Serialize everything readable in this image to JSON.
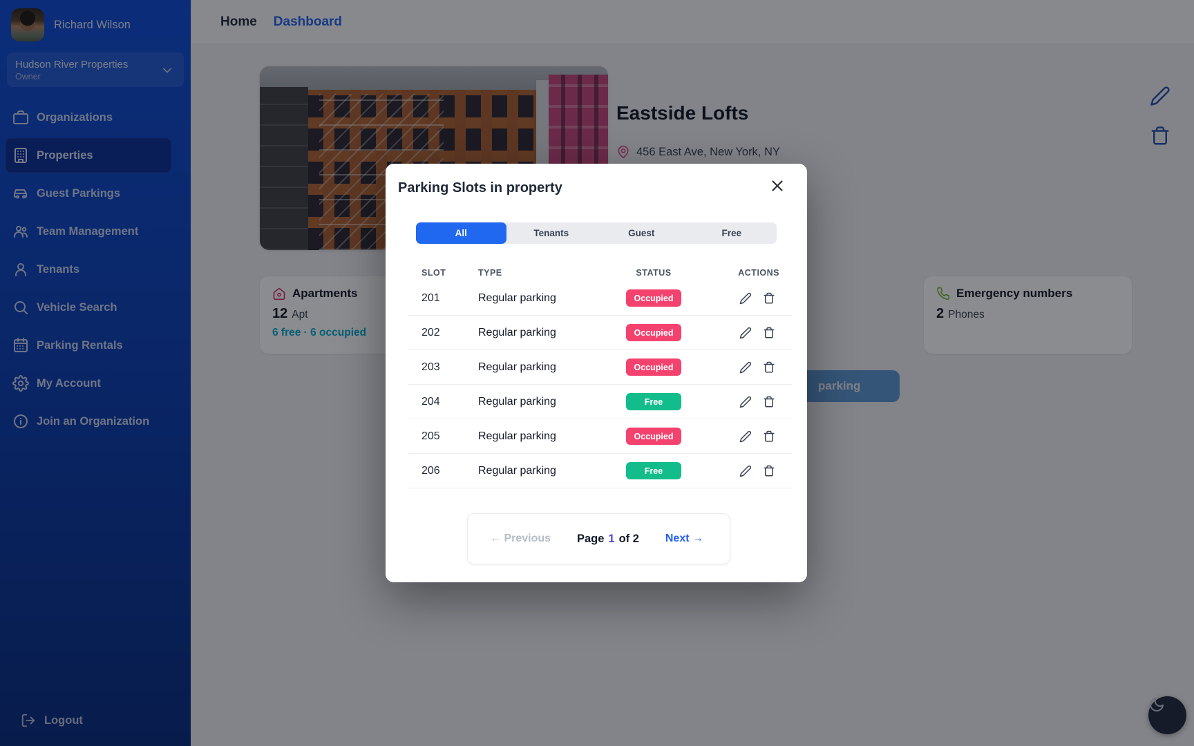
{
  "sidebar": {
    "user": {
      "name": "Richard Wilson"
    },
    "organization": {
      "name": "Hudson River Properties",
      "role": "Owner"
    },
    "nav": [
      {
        "label": "Organizations",
        "icon": "briefcase",
        "active": false
      },
      {
        "label": "Properties",
        "icon": "building",
        "active": true
      },
      {
        "label": "Guest Parkings",
        "icon": "car",
        "active": false
      },
      {
        "label": "Team Management",
        "icon": "users",
        "active": false
      },
      {
        "label": "Tenants",
        "icon": "user",
        "active": false
      },
      {
        "label": "Vehicle Search",
        "icon": "search",
        "active": false
      },
      {
        "label": "Parking Rentals",
        "icon": "calendar",
        "active": false
      },
      {
        "label": "My Account",
        "icon": "gear",
        "active": false
      },
      {
        "label": "Join an Organization",
        "icon": "info",
        "active": false
      }
    ],
    "logout_label": "Logout"
  },
  "breadcrumb": {
    "home": "Home",
    "current": "Dashboard"
  },
  "property": {
    "name": "Eastside Lofts",
    "address": "456 East Ave, New York, NY",
    "cards": [
      {
        "icon": "house",
        "icon_color": "#d6336c",
        "title": "Apartments",
        "value": "12",
        "unit": "Apt",
        "subtext": "6 free · 6 occupied"
      },
      {
        "icon": "phone",
        "icon_color": "#7cb342",
        "title": "Emergency numbers",
        "value": "2",
        "unit": "Phones",
        "subtext": ""
      }
    ],
    "partial_button_label": "parking"
  },
  "modal": {
    "title": "Parking Slots in property",
    "tabs": [
      {
        "label": "All",
        "active": true
      },
      {
        "label": "Tenants",
        "active": false
      },
      {
        "label": "Guest",
        "active": false
      },
      {
        "label": "Free",
        "active": false
      }
    ],
    "table": {
      "headers": [
        "SLOT",
        "TYPE",
        "STATUS",
        "ACTIONS"
      ],
      "rows": [
        {
          "slot": "201",
          "type": "Regular parking",
          "status": "Occupied"
        },
        {
          "slot": "202",
          "type": "Regular parking",
          "status": "Occupied"
        },
        {
          "slot": "203",
          "type": "Regular parking",
          "status": "Occupied"
        },
        {
          "slot": "204",
          "type": "Regular parking",
          "status": "Free"
        },
        {
          "slot": "205",
          "type": "Regular parking",
          "status": "Occupied"
        },
        {
          "slot": "206",
          "type": "Regular parking",
          "status": "Free"
        }
      ]
    },
    "pagination": {
      "previous": "← Previous",
      "page_word": "Page",
      "page_number": "1",
      "page_of": "of 2",
      "next": "Next →"
    }
  },
  "colors": {
    "status": {
      "Occupied": "#f4426e",
      "Free": "#12bd8b"
    },
    "accent_blue": "#2068ef",
    "link_blue": "#2563eb",
    "page_number": "#4f46e5",
    "cyan": "#00a9cf"
  }
}
